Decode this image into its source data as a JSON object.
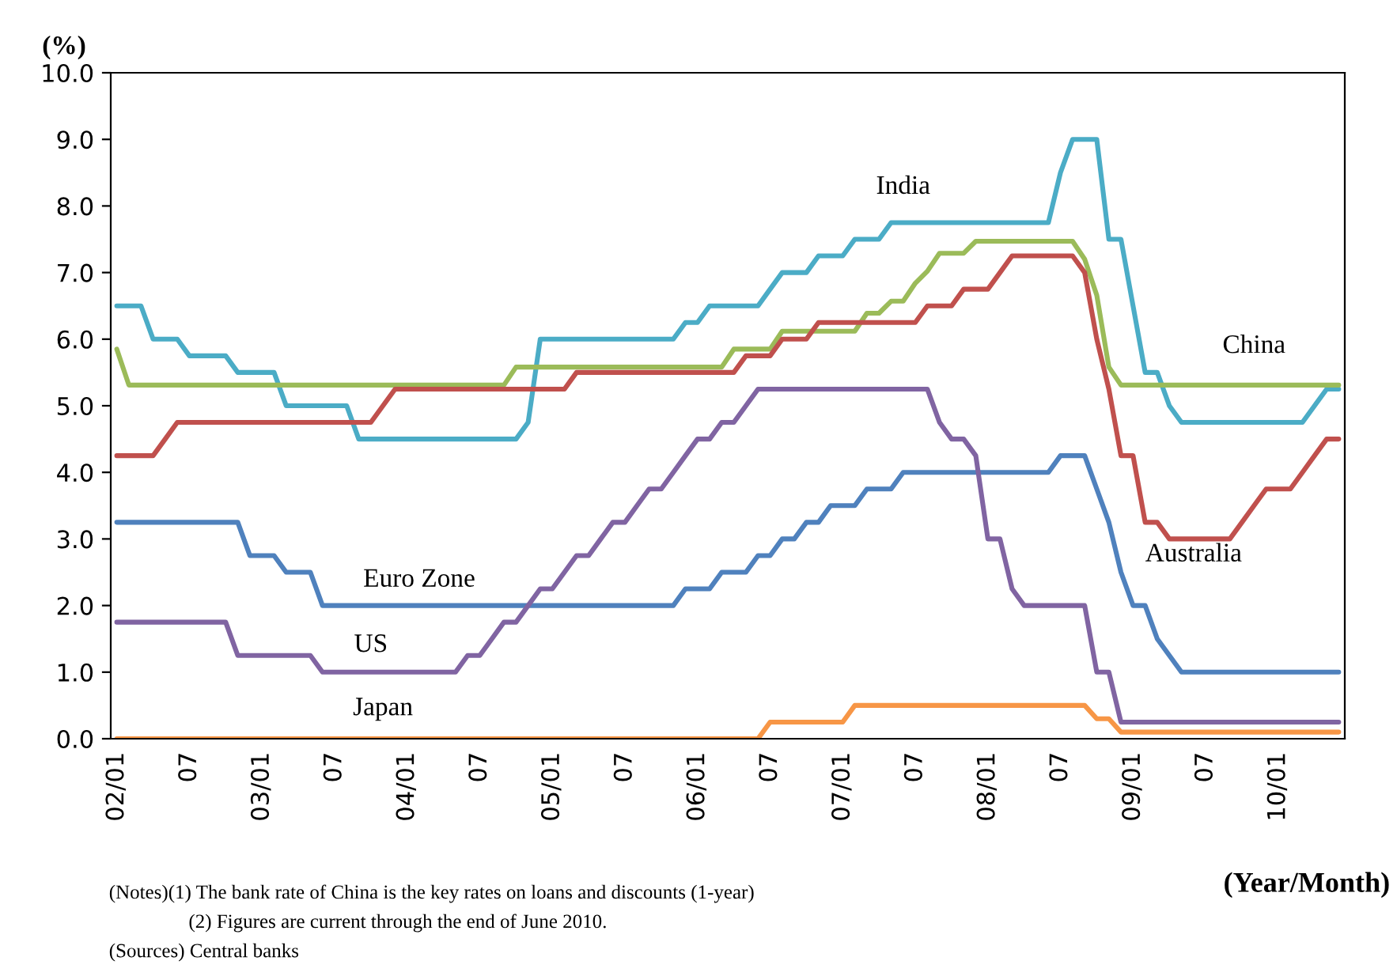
{
  "chart_data": {
    "type": "line",
    "ylabel": "(%)",
    "xlabel": "(Year/Month)",
    "categories": [
      "02/01",
      null,
      null,
      null,
      null,
      null,
      "07",
      null,
      null,
      null,
      null,
      null,
      "03/01",
      null,
      null,
      null,
      null,
      null,
      "07",
      null,
      null,
      null,
      null,
      null,
      "04/01",
      null,
      null,
      null,
      null,
      null,
      "07",
      null,
      null,
      null,
      null,
      null,
      "05/01",
      null,
      null,
      null,
      null,
      null,
      "07",
      null,
      null,
      null,
      null,
      null,
      "06/01",
      null,
      null,
      null,
      null,
      null,
      "07",
      null,
      null,
      null,
      null,
      null,
      "07/01",
      null,
      null,
      null,
      null,
      null,
      "07",
      null,
      null,
      null,
      null,
      null,
      "08/01",
      null,
      null,
      null,
      null,
      null,
      "07",
      null,
      null,
      null,
      null,
      null,
      "09/01",
      null,
      null,
      null,
      null,
      null,
      "07",
      null,
      null,
      null,
      null,
      null,
      "10/01",
      null,
      null,
      null,
      null,
      null
    ],
    "ylim": [
      0,
      10
    ],
    "yticks": [
      {
        "value": 0,
        "label": "0.0"
      },
      {
        "value": 1,
        "label": "1.0"
      },
      {
        "value": 2,
        "label": "2.0"
      },
      {
        "value": 3,
        "label": "3.0"
      },
      {
        "value": 4,
        "label": "4.0"
      },
      {
        "value": 5,
        "label": "5.0"
      },
      {
        "value": 6,
        "label": "6.0"
      },
      {
        "value": 7,
        "label": "7.0"
      },
      {
        "value": 8,
        "label": "8.0"
      },
      {
        "value": 9,
        "label": "9.0"
      },
      {
        "value": 10,
        "label": "10.0"
      }
    ],
    "grid": false,
    "legend": false,
    "line_style": "solid",
    "series": [
      {
        "name": "India",
        "color": "#4bacc6",
        "values": [
          6.5,
          6.5,
          6.5,
          6.0,
          6.0,
          6.0,
          5.75,
          5.75,
          5.75,
          5.75,
          5.5,
          5.5,
          5.5,
          5.5,
          5.0,
          5.0,
          5.0,
          5.0,
          5.0,
          5.0,
          4.5,
          4.5,
          4.5,
          4.5,
          4.5,
          4.5,
          4.5,
          4.5,
          4.5,
          4.5,
          4.5,
          4.5,
          4.5,
          4.5,
          4.75,
          6.0,
          6.0,
          6.0,
          6.0,
          6.0,
          6.0,
          6.0,
          6.0,
          6.0,
          6.0,
          6.0,
          6.0,
          6.25,
          6.25,
          6.5,
          6.5,
          6.5,
          6.5,
          6.5,
          6.75,
          7.0,
          7.0,
          7.0,
          7.25,
          7.25,
          7.25,
          7.5,
          7.5,
          7.5,
          7.75,
          7.75,
          7.75,
          7.75,
          7.75,
          7.75,
          7.75,
          7.75,
          7.75,
          7.75,
          7.75,
          7.75,
          7.75,
          7.75,
          8.5,
          9.0,
          9.0,
          9.0,
          7.5,
          7.5,
          6.5,
          5.5,
          5.5,
          5.0,
          4.75,
          4.75,
          4.75,
          4.75,
          4.75,
          4.75,
          4.75,
          4.75,
          4.75,
          4.75,
          4.75,
          5.0,
          5.25,
          5.25
        ]
      },
      {
        "name": "China",
        "color": "#9bbb59",
        "values": [
          5.85,
          5.31,
          5.31,
          5.31,
          5.31,
          5.31,
          5.31,
          5.31,
          5.31,
          5.31,
          5.31,
          5.31,
          5.31,
          5.31,
          5.31,
          5.31,
          5.31,
          5.31,
          5.31,
          5.31,
          5.31,
          5.31,
          5.31,
          5.31,
          5.31,
          5.31,
          5.31,
          5.31,
          5.31,
          5.31,
          5.31,
          5.31,
          5.31,
          5.58,
          5.58,
          5.58,
          5.58,
          5.58,
          5.58,
          5.58,
          5.58,
          5.58,
          5.58,
          5.58,
          5.58,
          5.58,
          5.58,
          5.58,
          5.58,
          5.58,
          5.58,
          5.85,
          5.85,
          5.85,
          5.85,
          6.12,
          6.12,
          6.12,
          6.12,
          6.12,
          6.12,
          6.12,
          6.39,
          6.39,
          6.57,
          6.57,
          6.84,
          7.02,
          7.29,
          7.29,
          7.29,
          7.47,
          7.47,
          7.47,
          7.47,
          7.47,
          7.47,
          7.47,
          7.47,
          7.47,
          7.2,
          6.66,
          5.58,
          5.31,
          5.31,
          5.31,
          5.31,
          5.31,
          5.31,
          5.31,
          5.31,
          5.31,
          5.31,
          5.31,
          5.31,
          5.31,
          5.31,
          5.31,
          5.31,
          5.31,
          5.31,
          5.31
        ]
      },
      {
        "name": "Australia",
        "color": "#c0504d",
        "values": [
          4.25,
          4.25,
          4.25,
          4.25,
          4.5,
          4.75,
          4.75,
          4.75,
          4.75,
          4.75,
          4.75,
          4.75,
          4.75,
          4.75,
          4.75,
          4.75,
          4.75,
          4.75,
          4.75,
          4.75,
          4.75,
          4.75,
          5.0,
          5.25,
          5.25,
          5.25,
          5.25,
          5.25,
          5.25,
          5.25,
          5.25,
          5.25,
          5.25,
          5.25,
          5.25,
          5.25,
          5.25,
          5.25,
          5.5,
          5.5,
          5.5,
          5.5,
          5.5,
          5.5,
          5.5,
          5.5,
          5.5,
          5.5,
          5.5,
          5.5,
          5.5,
          5.5,
          5.75,
          5.75,
          5.75,
          6.0,
          6.0,
          6.0,
          6.25,
          6.25,
          6.25,
          6.25,
          6.25,
          6.25,
          6.25,
          6.25,
          6.25,
          6.5,
          6.5,
          6.5,
          6.75,
          6.75,
          6.75,
          7.0,
          7.25,
          7.25,
          7.25,
          7.25,
          7.25,
          7.25,
          7.0,
          6.0,
          5.25,
          4.25,
          4.25,
          3.25,
          3.25,
          3.0,
          3.0,
          3.0,
          3.0,
          3.0,
          3.0,
          3.25,
          3.5,
          3.75,
          3.75,
          3.75,
          4.0,
          4.25,
          4.5,
          4.5
        ]
      },
      {
        "name": "Euro Zone",
        "color": "#4f81bd",
        "values": [
          3.25,
          3.25,
          3.25,
          3.25,
          3.25,
          3.25,
          3.25,
          3.25,
          3.25,
          3.25,
          3.25,
          2.75,
          2.75,
          2.75,
          2.5,
          2.5,
          2.5,
          2.0,
          2.0,
          2.0,
          2.0,
          2.0,
          2.0,
          2.0,
          2.0,
          2.0,
          2.0,
          2.0,
          2.0,
          2.0,
          2.0,
          2.0,
          2.0,
          2.0,
          2.0,
          2.0,
          2.0,
          2.0,
          2.0,
          2.0,
          2.0,
          2.0,
          2.0,
          2.0,
          2.0,
          2.0,
          2.0,
          2.25,
          2.25,
          2.25,
          2.5,
          2.5,
          2.5,
          2.75,
          2.75,
          3.0,
          3.0,
          3.25,
          3.25,
          3.5,
          3.5,
          3.5,
          3.75,
          3.75,
          3.75,
          4.0,
          4.0,
          4.0,
          4.0,
          4.0,
          4.0,
          4.0,
          4.0,
          4.0,
          4.0,
          4.0,
          4.0,
          4.0,
          4.25,
          4.25,
          4.25,
          3.75,
          3.25,
          2.5,
          2.0,
          2.0,
          1.5,
          1.25,
          1.0,
          1.0,
          1.0,
          1.0,
          1.0,
          1.0,
          1.0,
          1.0,
          1.0,
          1.0,
          1.0,
          1.0,
          1.0,
          1.0
        ]
      },
      {
        "name": "US",
        "color": "#8064a2",
        "values": [
          1.75,
          1.75,
          1.75,
          1.75,
          1.75,
          1.75,
          1.75,
          1.75,
          1.75,
          1.75,
          1.25,
          1.25,
          1.25,
          1.25,
          1.25,
          1.25,
          1.25,
          1.0,
          1.0,
          1.0,
          1.0,
          1.0,
          1.0,
          1.0,
          1.0,
          1.0,
          1.0,
          1.0,
          1.0,
          1.25,
          1.25,
          1.5,
          1.75,
          1.75,
          2.0,
          2.25,
          2.25,
          2.5,
          2.75,
          2.75,
          3.0,
          3.25,
          3.25,
          3.5,
          3.75,
          3.75,
          4.0,
          4.25,
          4.5,
          4.5,
          4.75,
          4.75,
          5.0,
          5.25,
          5.25,
          5.25,
          5.25,
          5.25,
          5.25,
          5.25,
          5.25,
          5.25,
          5.25,
          5.25,
          5.25,
          5.25,
          5.25,
          5.25,
          4.75,
          4.5,
          4.5,
          4.25,
          3.0,
          3.0,
          2.25,
          2.0,
          2.0,
          2.0,
          2.0,
          2.0,
          2.0,
          1.0,
          1.0,
          0.25,
          0.25,
          0.25,
          0.25,
          0.25,
          0.25,
          0.25,
          0.25,
          0.25,
          0.25,
          0.25,
          0.25,
          0.25,
          0.25,
          0.25,
          0.25,
          0.25,
          0.25,
          0.25
        ]
      },
      {
        "name": "Japan",
        "color": "#f79646",
        "values": [
          0,
          0,
          0,
          0,
          0,
          0,
          0,
          0,
          0,
          0,
          0,
          0,
          0,
          0,
          0,
          0,
          0,
          0,
          0,
          0,
          0,
          0,
          0,
          0,
          0,
          0,
          0,
          0,
          0,
          0,
          0,
          0,
          0,
          0,
          0,
          0,
          0,
          0,
          0,
          0,
          0,
          0,
          0,
          0,
          0,
          0,
          0,
          0,
          0,
          0,
          0,
          0,
          0,
          0,
          0.25,
          0.25,
          0.25,
          0.25,
          0.25,
          0.25,
          0.25,
          0.5,
          0.5,
          0.5,
          0.5,
          0.5,
          0.5,
          0.5,
          0.5,
          0.5,
          0.5,
          0.5,
          0.5,
          0.5,
          0.5,
          0.5,
          0.5,
          0.5,
          0.5,
          0.5,
          0.5,
          0.3,
          0.3,
          0.1,
          0.1,
          0.1,
          0.1,
          0.1,
          0.1,
          0.1,
          0.1,
          0.1,
          0.1,
          0.1,
          0.1,
          0.1,
          0.1,
          0.1,
          0.1,
          0.1,
          0.1,
          0.1
        ]
      }
    ],
    "annotations": [
      "(Notes)(1) The bank rate of China is the key rates on loans and discounts (1-year)",
      "(2) Figures are current through the end of June 2010.",
      "(Sources) Central banks"
    ]
  }
}
